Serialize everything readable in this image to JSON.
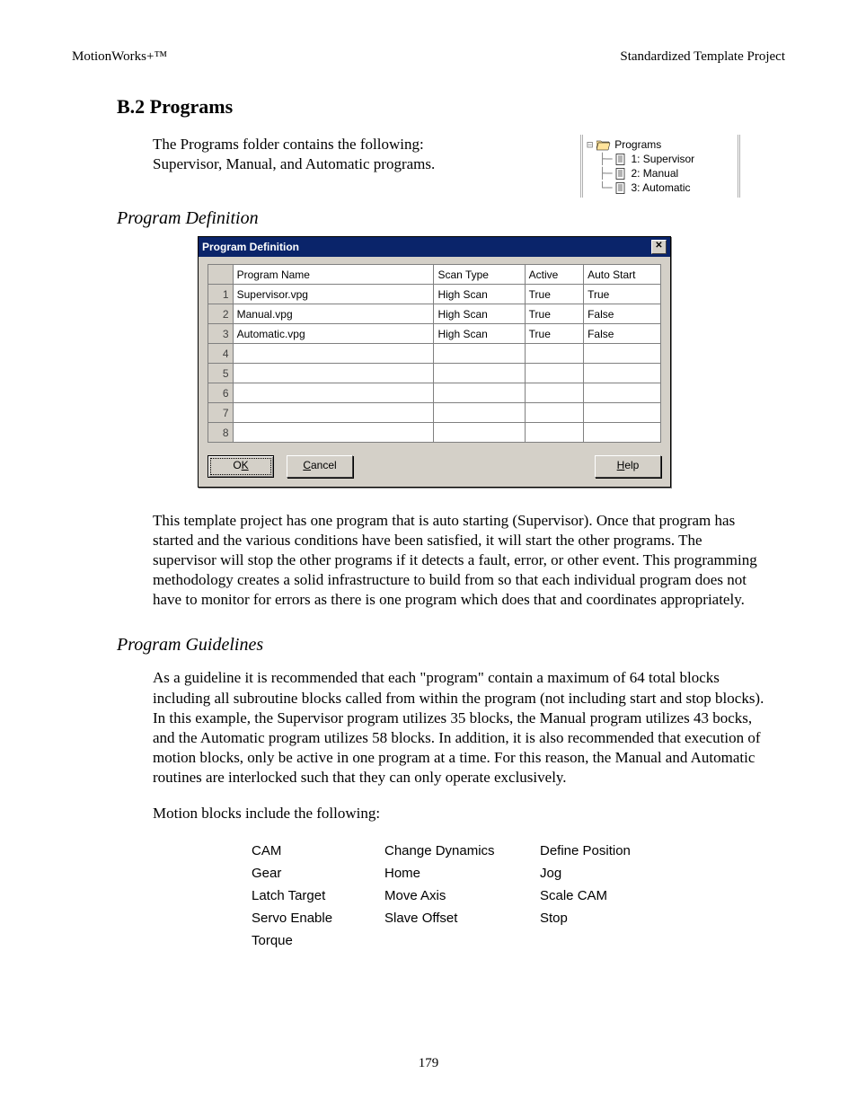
{
  "header": {
    "left": "MotionWorks+™",
    "right": "Standardized Template Project"
  },
  "section": {
    "heading": "B.2    Programs"
  },
  "intro": "The Programs folder contains the following:  Supervisor, Manual, and Automatic programs.",
  "tree": {
    "root": "Programs",
    "items": [
      "1: Supervisor",
      "2: Manual",
      "3: Automatic"
    ]
  },
  "subheading1": "Program Definition",
  "dialog": {
    "title": "Program Definition",
    "columns": [
      "Program Name",
      "Scan Type",
      "Active",
      "Auto Start"
    ],
    "rows": [
      {
        "n": "1",
        "name": "Supervisor.vpg",
        "scan": "High Scan",
        "active": "True",
        "auto": "True"
      },
      {
        "n": "2",
        "name": "Manual.vpg",
        "scan": "High Scan",
        "active": "True",
        "auto": "False"
      },
      {
        "n": "3",
        "name": "Automatic.vpg",
        "scan": "High Scan",
        "active": "True",
        "auto": "False"
      },
      {
        "n": "4",
        "name": "",
        "scan": "",
        "active": "",
        "auto": ""
      },
      {
        "n": "5",
        "name": "",
        "scan": "",
        "active": "",
        "auto": ""
      },
      {
        "n": "6",
        "name": "",
        "scan": "",
        "active": "",
        "auto": ""
      },
      {
        "n": "7",
        "name": "",
        "scan": "",
        "active": "",
        "auto": ""
      },
      {
        "n": "8",
        "name": "",
        "scan": "",
        "active": "",
        "auto": ""
      }
    ],
    "buttons": {
      "ok_pre": "O",
      "ok_u": "K",
      "cancel_u": "C",
      "cancel_post": "ancel",
      "help_u": "H",
      "help_post": "elp"
    }
  },
  "para2": "This template project has one program that is auto starting (Supervisor).  Once that program has started and the various conditions have been satisfied, it will start the other programs.  The supervisor will stop the other programs if it detects a fault, error, or other event.  This programming methodology creates a solid infrastructure to build from so that each individual program does not have to monitor for errors as there is one program which does that and coordinates appropriately.",
  "subheading2": "Program Guidelines",
  "para3": "As a guideline it is recommended that each \"program\" contain a maximum of 64 total blocks including all subroutine blocks called from within the program (not including start and stop blocks).  In this example, the Supervisor program utilizes 35 blocks, the Manual program utilizes 43 bocks, and the Automatic program utilizes 58 blocks.  In addition, it is also recommended that execution of motion blocks, only be active in one program at a time.  For this reason, the Manual and Automatic routines are interlocked such that they can only operate exclusively.",
  "para4": "Motion blocks include the following:",
  "motion": [
    [
      "CAM",
      "Change Dynamics",
      "Define Position"
    ],
    [
      "Gear",
      "Home",
      "Jog"
    ],
    [
      "Latch Target",
      "Move Axis",
      "Scale CAM"
    ],
    [
      "Servo Enable",
      "Slave Offset",
      "Stop"
    ],
    [
      "Torque",
      "",
      ""
    ]
  ],
  "pageNumber": "179"
}
